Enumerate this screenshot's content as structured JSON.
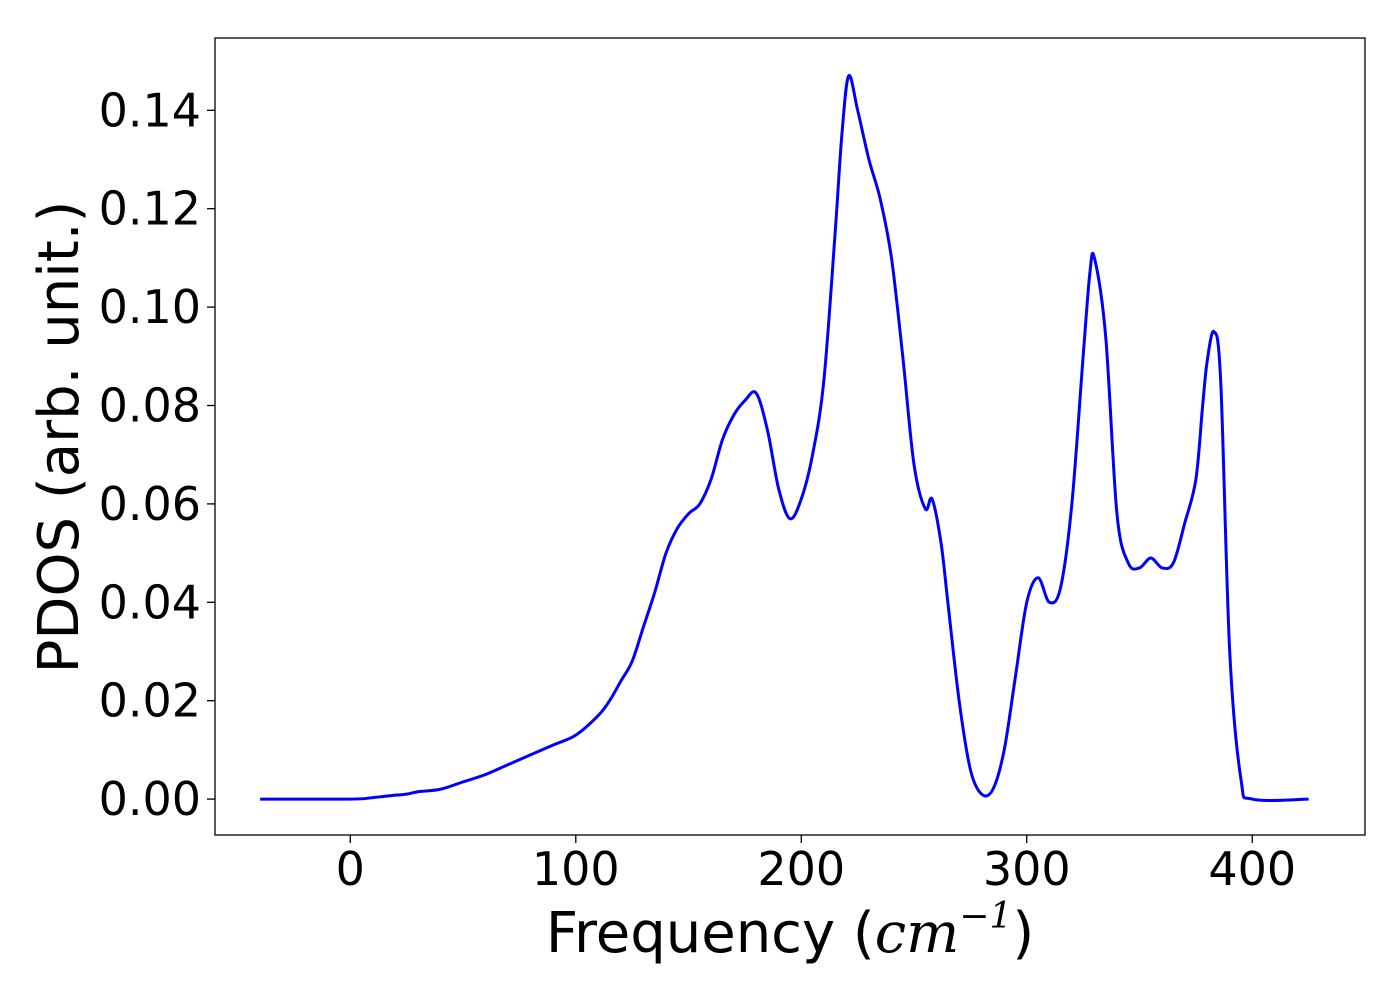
{
  "chart_data": {
    "type": "line",
    "title": "",
    "xlabel_text": "Frequency (",
    "xlabel_unit": "cm",
    "xlabel_exponent": "−1",
    "xlabel_close": ")",
    "ylabel": "PDOS (arb. unit.)",
    "xlim": [
      -60,
      450
    ],
    "ylim": [
      -0.0073,
      0.1547
    ],
    "x_ticks": [
      0,
      100,
      200,
      300,
      400
    ],
    "x_tick_labels": [
      "0",
      "100",
      "200",
      "300",
      "400"
    ],
    "y_ticks": [
      0.0,
      0.02,
      0.04,
      0.06,
      0.08,
      0.1,
      0.12,
      0.14
    ],
    "y_tick_labels": [
      "0.00",
      "0.02",
      "0.04",
      "0.06",
      "0.08",
      "0.10",
      "0.12",
      "0.14"
    ],
    "grid": false,
    "legend": "none",
    "series": [
      {
        "color": "#0000ff",
        "x": [
          -40,
          0,
          10,
          20,
          25,
          30,
          40,
          50,
          60,
          70,
          80,
          90,
          100,
          110,
          115,
          120,
          125,
          130,
          135,
          140,
          145,
          150,
          155,
          160,
          165,
          170,
          175,
          180,
          185,
          190,
          195,
          200,
          205,
          210,
          215,
          218,
          221,
          225,
          230,
          235,
          240,
          245,
          250,
          255,
          258,
          262,
          265,
          270,
          275,
          280,
          285,
          290,
          295,
          300,
          305,
          310,
          315,
          320,
          325,
          328,
          330,
          335,
          340,
          345,
          350,
          355,
          360,
          365,
          370,
          375,
          378,
          380,
          383,
          386,
          390,
          395,
          400,
          425
        ],
        "y": [
          0.0,
          0.0,
          0.0003,
          0.0008,
          0.001,
          0.0015,
          0.002,
          0.0035,
          0.005,
          0.007,
          0.009,
          0.011,
          0.013,
          0.017,
          0.02,
          0.024,
          0.028,
          0.035,
          0.042,
          0.05,
          0.055,
          0.058,
          0.06,
          0.065,
          0.073,
          0.078,
          0.081,
          0.0825,
          0.075,
          0.063,
          0.057,
          0.061,
          0.07,
          0.085,
          0.115,
          0.135,
          0.147,
          0.14,
          0.13,
          0.122,
          0.11,
          0.09,
          0.068,
          0.059,
          0.061,
          0.052,
          0.04,
          0.02,
          0.006,
          0.001,
          0.002,
          0.01,
          0.025,
          0.04,
          0.045,
          0.04,
          0.043,
          0.06,
          0.09,
          0.107,
          0.11,
          0.094,
          0.058,
          0.048,
          0.047,
          0.049,
          0.047,
          0.048,
          0.056,
          0.065,
          0.08,
          0.089,
          0.095,
          0.085,
          0.03,
          0.004,
          0.0,
          0.0
        ]
      }
    ]
  }
}
